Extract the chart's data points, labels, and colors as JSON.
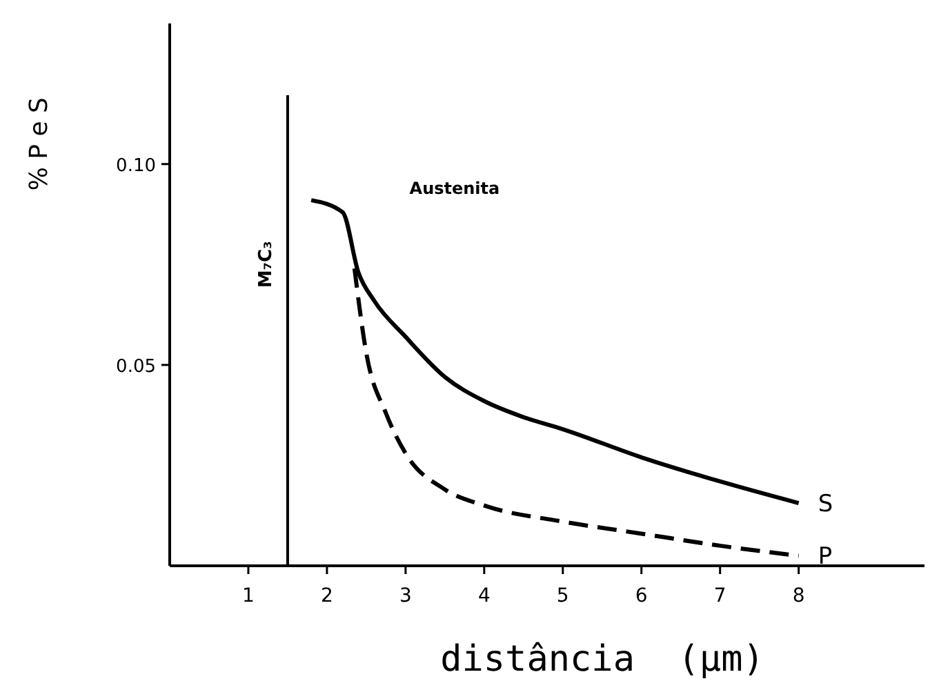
{
  "chart_data": {
    "type": "line",
    "xlabel": "distância  (µm)",
    "ylabel": "% P e S",
    "xlim": [
      0,
      9.6
    ],
    "ylim": [
      0,
      0.135
    ],
    "xticks": [
      1,
      2,
      3,
      4,
      5,
      6,
      7,
      8
    ],
    "yticks": [
      {
        "value": 0.05,
        "label": "0.05"
      },
      {
        "value": 0.1,
        "label": "0.10"
      }
    ],
    "grid": false,
    "marker": "none",
    "series": [
      {
        "name": "S",
        "color": "#000000",
        "line_style": "solid",
        "x": [
          1.8,
          2.2,
          2.4,
          2.6,
          3,
          3.5,
          4,
          4.5,
          5,
          6,
          7,
          8
        ],
        "values": [
          0.091,
          0.088,
          0.073,
          0.066,
          0.057,
          0.047,
          0.041,
          0.037,
          0.034,
          0.027,
          0.021,
          0.0156
        ]
      },
      {
        "name": "P",
        "color": "#000000",
        "line_style": "dashed",
        "x": [
          2.35,
          2.5,
          2.75,
          3,
          3.5,
          4,
          5,
          6,
          7,
          8
        ],
        "values": [
          0.074,
          0.053,
          0.038,
          0.028,
          0.019,
          0.015,
          0.011,
          0.008,
          0.005,
          0.0025
        ]
      }
    ],
    "ref_lines": [
      {
        "axis": "x",
        "value": 1.5,
        "label": "M₇C₃",
        "color": "#000000"
      }
    ],
    "annotations": [
      "Austenita"
    ]
  }
}
